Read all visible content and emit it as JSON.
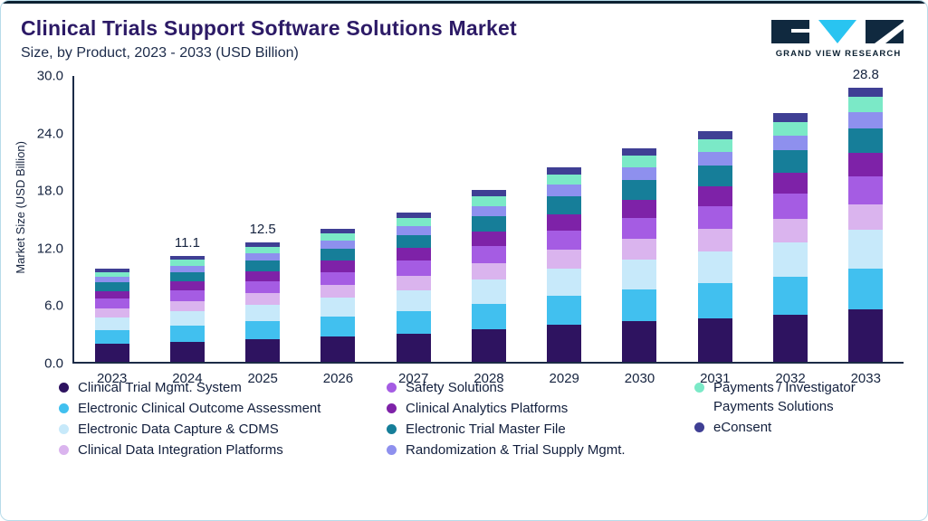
{
  "header": {
    "title": "Clinical Trials Support Software Solutions Market",
    "subtitle": "Size, by Product, 2023 - 2033 (USD Billion)",
    "brand_name": "GRAND VIEW RESEARCH"
  },
  "colors": {
    "accent_top": "#0d2233",
    "title": "#2c1a66",
    "text": "#15233f",
    "axis": "#1c2b47",
    "card_border": "#b7dbe9",
    "logo_dark": "#10293f",
    "logo_cyan": "#29c4f1"
  },
  "chart_data": {
    "type": "bar",
    "stacked": true,
    "title": "Clinical Trials Support Software Solutions Market Size, by Product, 2023 - 2033 (USD Billion)",
    "xlabel": "",
    "ylabel": "Market Size (USD Billion)",
    "ylim": [
      0,
      30
    ],
    "ytick_labels": [
      "0.0",
      "6.0",
      "12.0",
      "18.0",
      "24.0",
      "30.0"
    ],
    "grid": false,
    "legend_position": "bottom",
    "categories": [
      "2023",
      "2024",
      "2025",
      "2026",
      "2027",
      "2028",
      "2029",
      "2030",
      "2031",
      "2032",
      "2033"
    ],
    "bar_labels": [
      "",
      "11.1",
      "12.5",
      "",
      "",
      "",
      "",
      "",
      "",
      "",
      "28.8"
    ],
    "series": [
      {
        "name": "Clinical Trial Mgmt. System",
        "color": "#2e1360",
        "legend_column": 1,
        "values": [
          1.86,
          2.11,
          2.38,
          2.66,
          2.98,
          3.42,
          3.88,
          4.26,
          4.6,
          4.96,
          5.47
        ]
      },
      {
        "name": "Electronic Clinical Outcome Assessment",
        "color": "#41c0ef",
        "legend_column": 1,
        "values": [
          1.47,
          1.67,
          1.88,
          2.1,
          2.36,
          2.7,
          3.06,
          3.36,
          3.63,
          3.92,
          4.32
        ]
      },
      {
        "name": "Electronic Data Capture & CDMS",
        "color": "#c7e9fa",
        "legend_column": 1,
        "values": [
          1.37,
          1.55,
          1.75,
          1.96,
          2.2,
          2.52,
          2.86,
          3.14,
          3.39,
          3.65,
          4.03
        ]
      },
      {
        "name": "Clinical Data Integration Platforms",
        "color": "#dab4ee",
        "legend_column": 1,
        "values": [
          0.93,
          1.05,
          1.19,
          1.33,
          1.49,
          1.71,
          1.94,
          2.13,
          2.3,
          2.48,
          2.74
        ]
      },
      {
        "name": "Safety Solutions",
        "color": "#a55ce3",
        "legend_column": 2,
        "values": [
          0.98,
          1.11,
          1.25,
          1.4,
          1.57,
          1.8,
          2.04,
          2.24,
          2.42,
          2.61,
          2.88
        ]
      },
      {
        "name": "Clinical Analytics Platforms",
        "color": "#7e22a8",
        "legend_column": 2,
        "values": [
          0.83,
          0.94,
          1.06,
          1.19,
          1.33,
          1.53,
          1.73,
          1.9,
          2.06,
          2.22,
          2.45
        ]
      },
      {
        "name": "Electronic Trial Master File",
        "color": "#167e99",
        "legend_column": 2,
        "values": [
          0.88,
          1.0,
          1.13,
          1.26,
          1.41,
          1.62,
          1.84,
          2.02,
          2.18,
          2.35,
          2.59
        ]
      },
      {
        "name": "Randomization & Trial Supply Mgmt.",
        "color": "#8e90ee",
        "legend_column": 2,
        "values": [
          0.59,
          0.67,
          0.75,
          0.84,
          0.94,
          1.08,
          1.22,
          1.34,
          1.45,
          1.57,
          1.73
        ]
      },
      {
        "name": "Payments / Investigator Payments Solutions",
        "color": "#7be9c7",
        "legend_column": 3,
        "values": [
          0.54,
          0.61,
          0.69,
          0.77,
          0.86,
          0.99,
          1.12,
          1.23,
          1.33,
          1.44,
          1.58
        ]
      },
      {
        "name": "eConsent",
        "color": "#3f3f94",
        "legend_column": 3,
        "values": [
          0.34,
          0.39,
          0.44,
          0.49,
          0.55,
          0.63,
          0.71,
          0.78,
          0.85,
          0.91,
          1.01
        ]
      }
    ]
  }
}
